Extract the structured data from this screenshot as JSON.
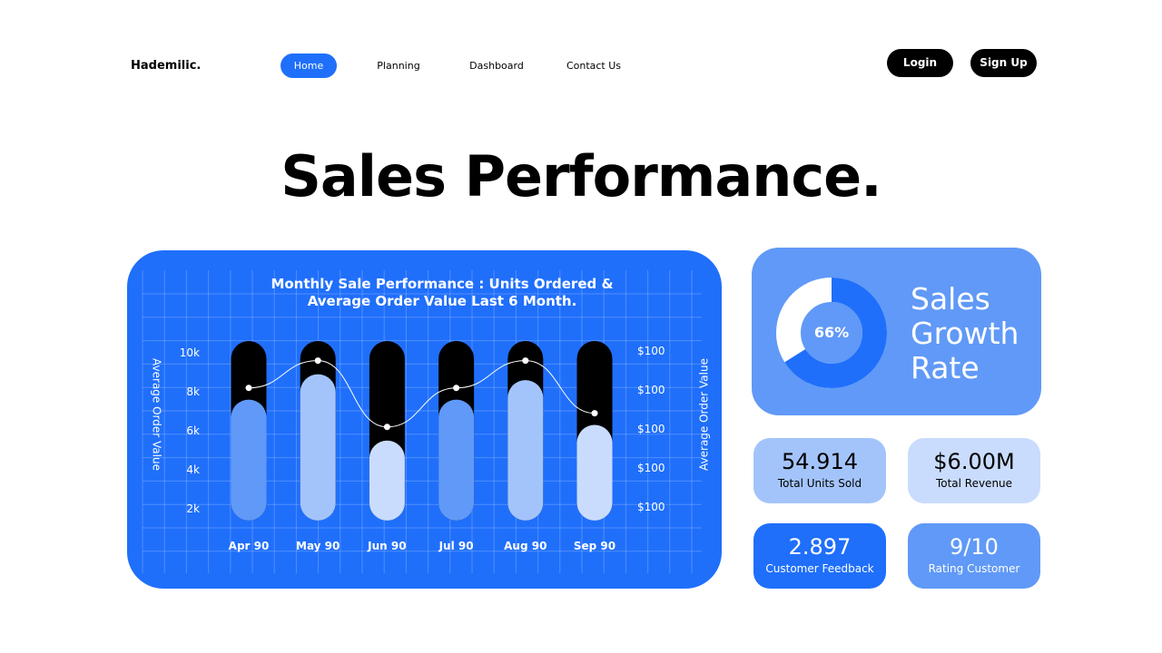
{
  "header": {
    "logo": "Hademilic.",
    "nav": [
      "Home",
      "Planning",
      "Dashboard",
      "Contact Us"
    ],
    "active_nav": "Home",
    "login": "Login",
    "signup": "Sign Up"
  },
  "page_title": "Sales Performance.",
  "colors": {
    "primary": "#1f6ffb",
    "card": "#6099f7",
    "light1": "#a3c4fb",
    "light2": "#c9dcfd",
    "track": "#000000"
  },
  "chart_data": {
    "type": "bar",
    "title_line1": "Monthly Sale Performance : Units Ordered &",
    "title_line2": "Average Order Value Last 6 Month.",
    "categories": [
      "Apr 90",
      "May 90",
      "Jun 90",
      "Jul 90",
      "Aug 90",
      "Sep 90"
    ],
    "ylabel": "Average Order Value",
    "y2label": "Average Order Value",
    "yticks": [
      "10k",
      "8k",
      "6k",
      "4k",
      "2k"
    ],
    "y2ticks": [
      "$100",
      "$100",
      "$100",
      "$100",
      "$100"
    ],
    "ylim": [
      0,
      10
    ],
    "grid": true,
    "bar_values": [
      7.6,
      8.9,
      5.5,
      7.6,
      8.6,
      6.3
    ],
    "line_values": [
      8.2,
      9.6,
      6.2,
      8.2,
      9.6,
      6.9
    ]
  },
  "growth": {
    "percent": 66,
    "percent_label": "66%",
    "label_lines": [
      "Sales",
      "Growth",
      "Rate"
    ]
  },
  "stats": [
    {
      "value": "54.914",
      "label": "Total Units Sold"
    },
    {
      "value": "$6.00M",
      "label": "Total Revenue"
    },
    {
      "value": "2.897",
      "label": "Customer Feedback"
    },
    {
      "value": "9/10",
      "label": "Rating Customer"
    }
  ]
}
